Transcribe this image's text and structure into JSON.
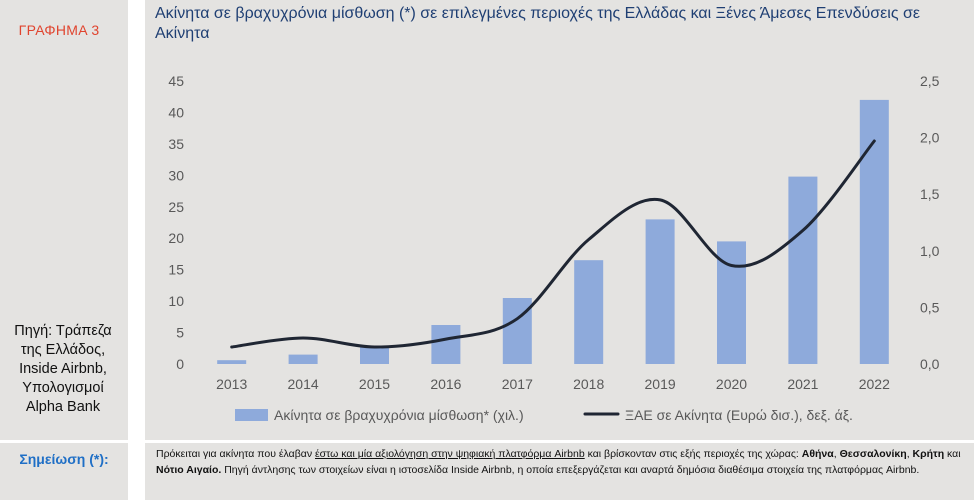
{
  "chart_number": "ΓΡΑΦΗΜΑ 3",
  "title": "Ακίνητα σε βραχυχρόνια μίσθωση (*) σε επιλεγμένες περιοχές της Ελλάδας και Ξένες Άμεσες Επενδύσεις σε Ακίνητα",
  "source": "Πηγή: Τράπεζα της Ελλάδος, Inside Airbnb, Υπολογισμοί Alpha Bank",
  "note": {
    "label": "Σημείωση (*):",
    "text_1": "Πρόκειται για ακίνητα που έλαβαν ",
    "text_2": "έστω και μία αξιολόγηση στην ψηφιακή πλατφόρμα Airbnb",
    "text_3": " και βρίσκονταν στις εξής περιοχές της χώρας: ",
    "region_1": "Αθήνα",
    "sep_1": ", ",
    "region_2": "Θεσσαλονίκη",
    "sep_2": ", ",
    "region_3": "Κρήτη",
    "sep_3": " και ",
    "region_4": "Νότιο Αιγαίο.",
    "text_4": " Πηγή άντλησης των στοιχείων είναι η ιστοσελίδα Inside Airbnb, η οποία επεξεργάζεται και αναρτά δημόσια διαθέσιμα στοιχεία της πλατφόρμας Airbnb."
  },
  "colors": {
    "bar": "#8eaadb",
    "line": "#1f2633",
    "title": "#1f3f73",
    "chart_number": "#e0442e",
    "note_label": "#1f6fc6",
    "panel": "#e4e3e1"
  },
  "chart_data": {
    "type": "bar+line",
    "categories": [
      "2013",
      "2014",
      "2015",
      "2016",
      "2017",
      "2018",
      "2019",
      "2020",
      "2021",
      "2022"
    ],
    "series": [
      {
        "name": "Ακίνητα σε βραχυχρόνια μίσθωση* (χιλ.)",
        "type": "bar",
        "axis": "left",
        "values": [
          0.6,
          1.5,
          2.7,
          6.2,
          10.5,
          16.5,
          23,
          19.5,
          29.8,
          42
        ]
      },
      {
        "name": "ΞΑΕ σε Ακίνητα (Ευρώ δισ.), δεξ. άξ.",
        "type": "line",
        "axis": "right",
        "smooth": true,
        "values": [
          0.15,
          0.23,
          0.15,
          0.22,
          0.4,
          1.1,
          1.45,
          0.87,
          1.18,
          1.97
        ]
      }
    ],
    "y_left": {
      "min": 0,
      "max": 45,
      "ticks": [
        "0",
        "5",
        "10",
        "15",
        "20",
        "25",
        "30",
        "35",
        "40",
        "45"
      ]
    },
    "y_right": {
      "min": 0,
      "max": 2.5,
      "ticks": [
        "0,0",
        "0,5",
        "1,0",
        "1,5",
        "2,0",
        "2,5"
      ]
    },
    "grid": false,
    "legend_position": "bottom"
  }
}
